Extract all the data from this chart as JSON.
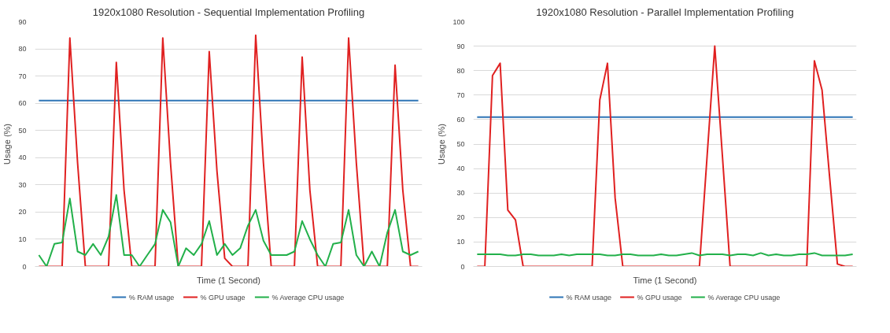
{
  "chart_data": [
    {
      "type": "line",
      "title": "1920x1080 Resolution - Sequential Implementation Profiling",
      "xlabel": "Time (1 Second)",
      "ylabel": "Usage (%)",
      "categories": [
        null,
        null,
        null,
        null,
        null,
        null,
        null,
        null,
        null,
        null,
        null,
        null,
        null,
        null,
        null,
        null,
        null,
        null,
        null,
        null,
        null,
        null,
        null,
        null,
        null,
        null,
        null,
        null,
        null,
        null,
        null,
        null,
        null,
        null,
        null,
        null,
        null,
        null,
        null,
        null,
        null,
        null,
        null,
        null,
        null,
        null,
        null,
        null,
        null,
        null
      ],
      "series": [
        {
          "name": "% RAM usage",
          "color": "#2e75b6",
          "values": [
            61,
            61,
            61,
            61,
            61,
            61,
            61,
            61,
            61,
            61,
            61,
            61,
            61,
            61,
            61,
            61,
            61,
            61,
            61,
            61,
            61,
            61,
            61,
            61,
            61,
            61,
            61,
            61,
            61,
            61,
            61,
            61,
            61,
            61,
            61,
            61,
            61,
            61,
            61,
            61,
            61,
            61,
            61,
            61,
            61,
            61,
            61,
            61,
            61,
            61
          ]
        },
        {
          "name": "% GPU usage",
          "color": "#e02020",
          "values": [
            0,
            0,
            0,
            0,
            84,
            38,
            0,
            0,
            0,
            0,
            75,
            28,
            0,
            0,
            0,
            0,
            84,
            38,
            0,
            0,
            0,
            0,
            79,
            35,
            3,
            0,
            0,
            0,
            85,
            38,
            0,
            0,
            0,
            0,
            77,
            28,
            0,
            0,
            0,
            0,
            84,
            38,
            0,
            0,
            0,
            0,
            74,
            28,
            0,
            0
          ]
        },
        {
          "name": "% Average  CPU usage",
          "color": "#22b04a",
          "values": [
            4.2,
            0,
            8.3,
            8.8,
            25,
            5.5,
            4.2,
            8.3,
            4.2,
            11,
            26.3,
            4.2,
            4.2,
            0,
            4.2,
            8.3,
            20.8,
            16.3,
            0,
            6.7,
            4.2,
            8.3,
            16.7,
            4.2,
            8.3,
            4.2,
            6.7,
            15,
            20.8,
            9.5,
            4.2,
            4.2,
            4.2,
            5.5,
            16.7,
            10,
            4.2,
            0,
            8.3,
            8.8,
            20.8,
            4.2,
            0,
            5.5,
            0,
            12.5,
            20.8,
            5.5,
            4.2,
            5.5
          ]
        }
      ],
      "ylim": [
        0,
        90
      ],
      "yticks": [
        0,
        10,
        20,
        30,
        40,
        50,
        60,
        70,
        80,
        90
      ],
      "grid": "y",
      "legend": "bottom",
      "tick_labels": "y",
      "line_style": "solid",
      "marker": "none"
    },
    {
      "type": "line",
      "title": "1920x1080 Resolution - Parallel Implementation Profiling",
      "xlabel": "Time (1 Second)",
      "ylabel": "Usage (%)",
      "categories": [
        null,
        null,
        null,
        null,
        null,
        null,
        null,
        null,
        null,
        null,
        null,
        null,
        null,
        null,
        null,
        null,
        null,
        null,
        null,
        null,
        null,
        null,
        null,
        null,
        null,
        null,
        null,
        null,
        null,
        null,
        null,
        null,
        null,
        null,
        null,
        null,
        null,
        null,
        null,
        null,
        null,
        null,
        null,
        null,
        null,
        null,
        null,
        null,
        null,
        null
      ],
      "series": [
        {
          "name": "% RAM usage",
          "color": "#2e75b6",
          "values": [
            61,
            61,
            61,
            61,
            61,
            61,
            61,
            61,
            61,
            61,
            61,
            61,
            61,
            61,
            61,
            61,
            61,
            61,
            61,
            61,
            61,
            61,
            61,
            61,
            61,
            61,
            61,
            61,
            61,
            61,
            61,
            61,
            61,
            61,
            61,
            61,
            61,
            61,
            61,
            61,
            61,
            61,
            61,
            61,
            61,
            61,
            61,
            61,
            61,
            61
          ]
        },
        {
          "name": "% GPU usage",
          "color": "#e02020",
          "values": [
            0,
            0,
            78,
            83,
            23,
            19,
            0,
            0,
            0,
            0,
            0,
            0,
            0,
            0,
            0,
            0,
            68,
            83,
            28,
            0,
            0,
            0,
            0,
            0,
            0,
            0,
            0,
            0,
            0,
            0,
            45,
            90,
            45,
            0,
            0,
            0,
            0,
            0,
            0,
            0,
            0,
            0,
            0,
            0,
            84,
            72,
            36,
            1,
            0,
            0
          ]
        },
        {
          "name": "% Average  CPU usage",
          "color": "#22b04a",
          "values": [
            5,
            5,
            5,
            5,
            4.5,
            4.5,
            5,
            5,
            4.5,
            4.5,
            4.5,
            5,
            4.5,
            5,
            5,
            5,
            5,
            4.5,
            4.5,
            5,
            5,
            4.5,
            4.5,
            4.5,
            5,
            4.5,
            4.5,
            5,
            5.5,
            4.5,
            5,
            5,
            5,
            4.5,
            5,
            5,
            4.5,
            5.5,
            4.5,
            5,
            4.5,
            4.5,
            5,
            5,
            5.5,
            4.5,
            4.5,
            4.5,
            4.5,
            5
          ]
        }
      ],
      "ylim": [
        0,
        100
      ],
      "yticks": [
        0,
        10,
        20,
        30,
        40,
        50,
        60,
        70,
        80,
        90,
        100
      ],
      "grid": "y",
      "legend": "bottom",
      "tick_labels": "y",
      "line_style": "solid",
      "marker": "none"
    }
  ]
}
